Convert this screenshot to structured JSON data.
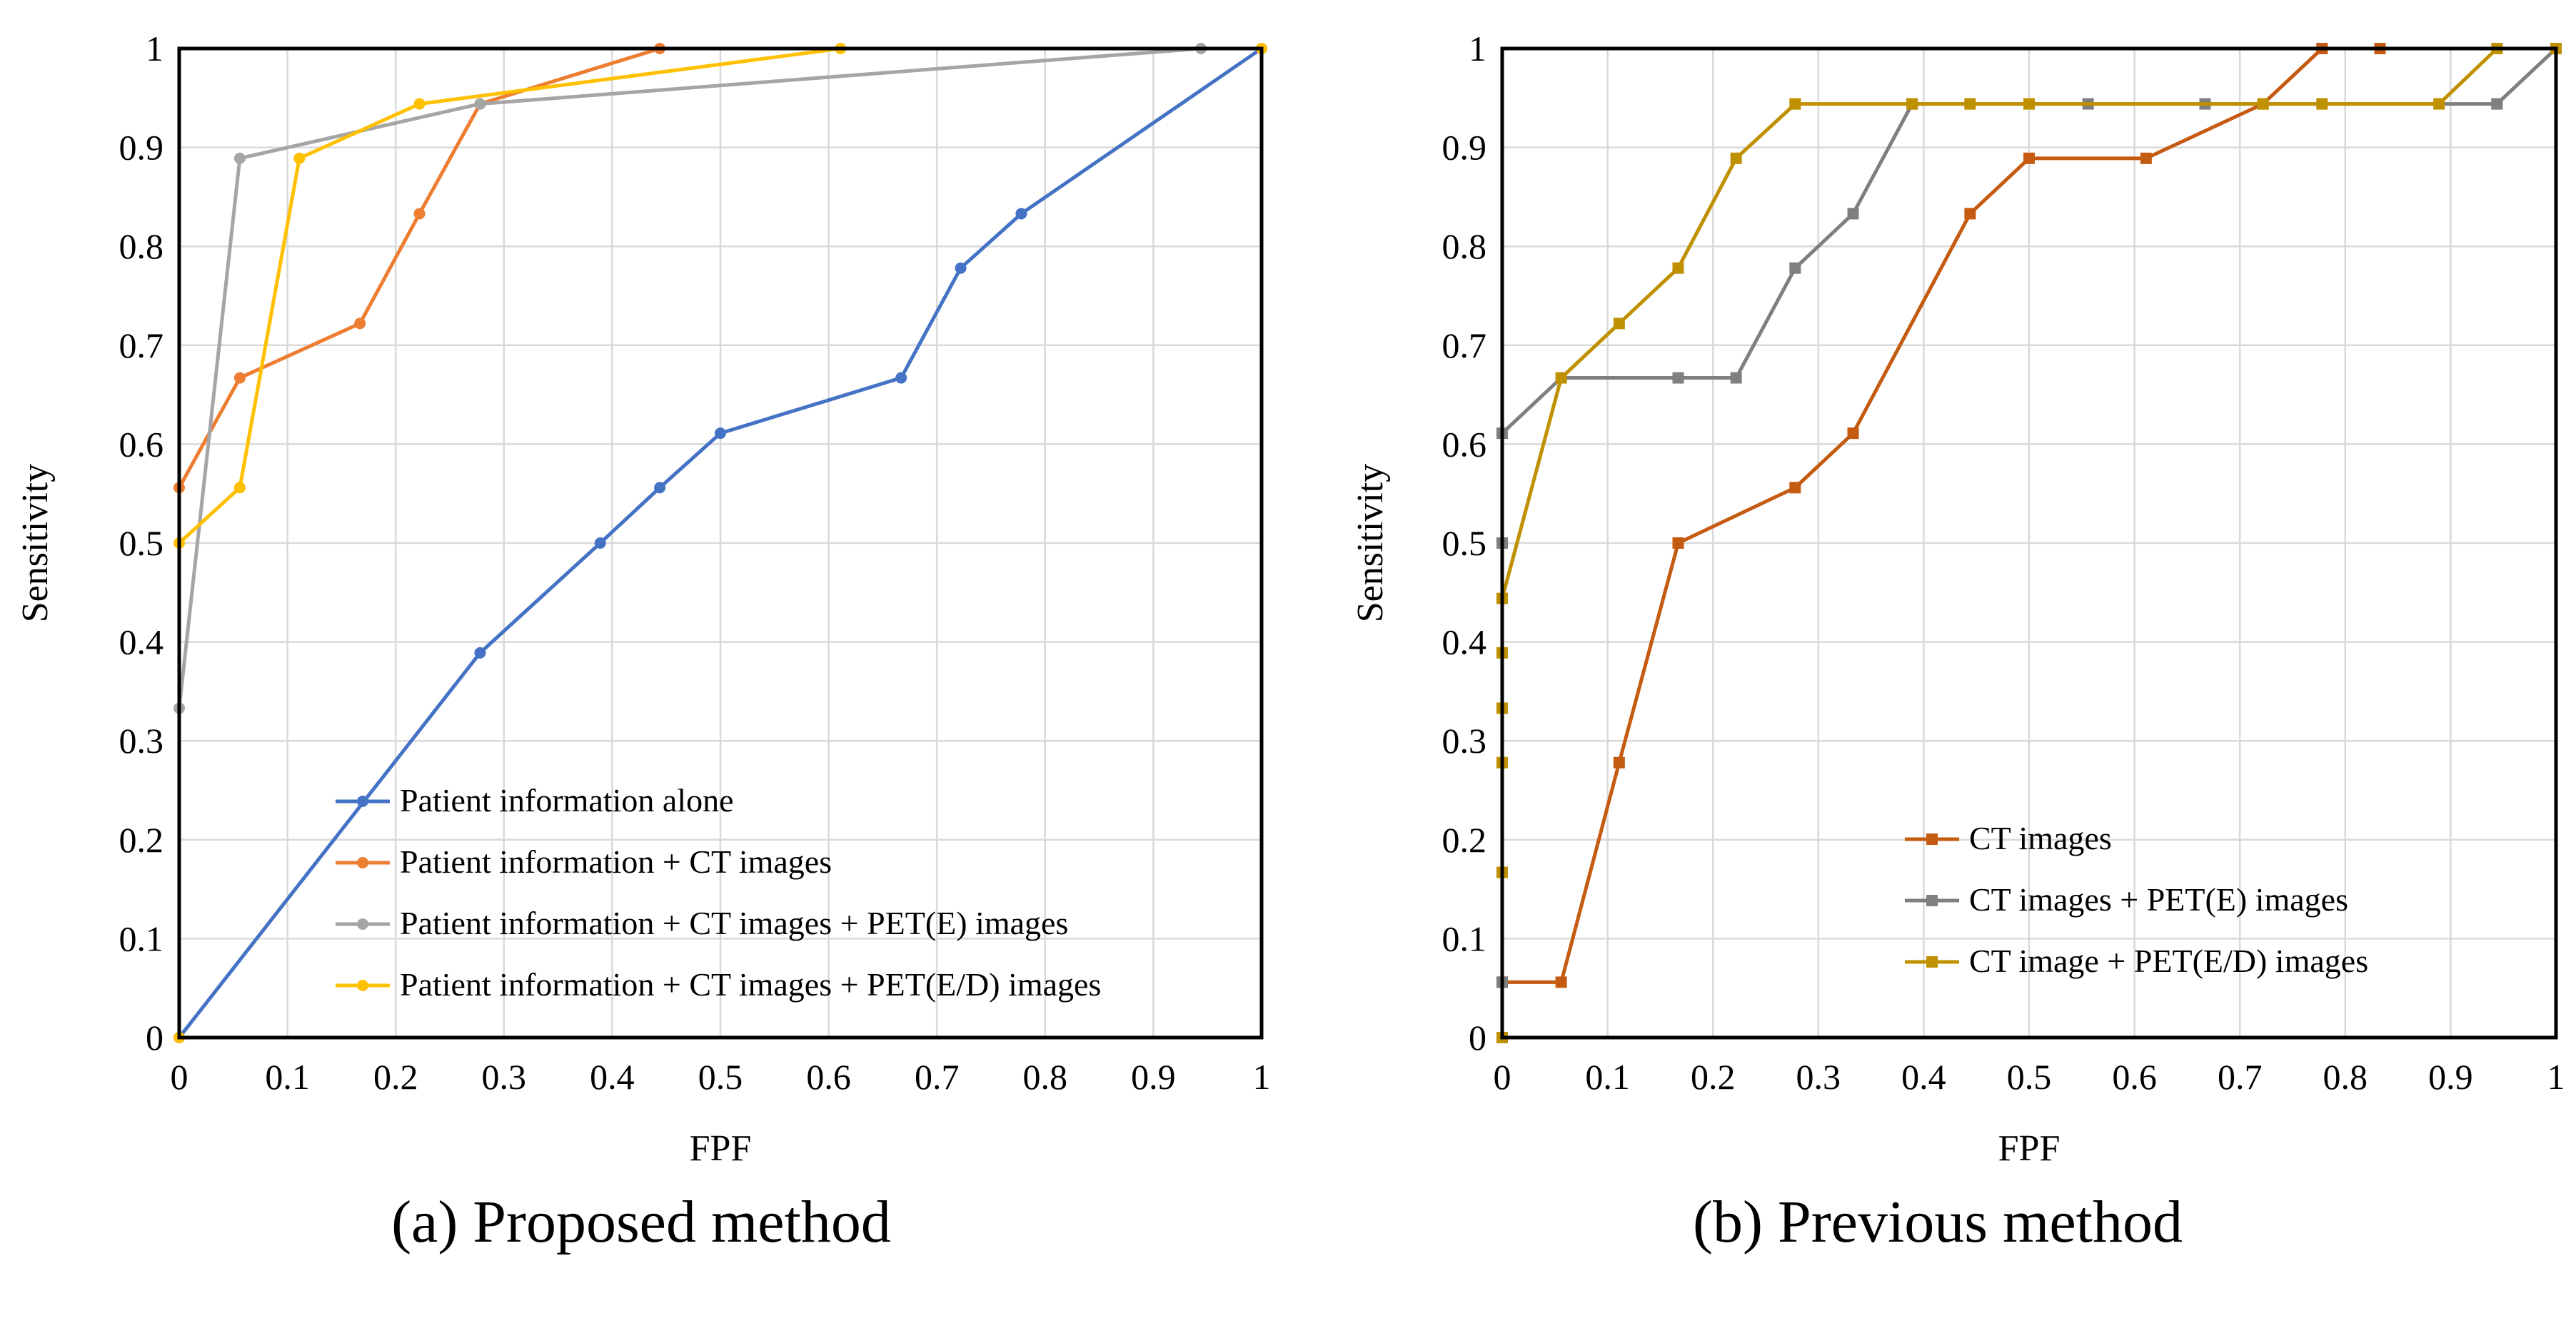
{
  "chart_data": [
    {
      "type": "line",
      "caption": "(a) Proposed method",
      "xlabel": "FPF",
      "ylabel": "Sensitivity",
      "xlim": [
        0,
        1
      ],
      "ylim": [
        0,
        1
      ],
      "grid": true,
      "x_ticks": [
        "0",
        "0.1",
        "0.2",
        "0.3",
        "0.4",
        "0.5",
        "0.6",
        "0.7",
        "0.8",
        "0.9",
        "1"
      ],
      "y_ticks": [
        "0",
        "0.1",
        "0.2",
        "0.3",
        "0.4",
        "0.5",
        "0.6",
        "0.7",
        "0.8",
        "0.9",
        "1"
      ],
      "legend_position": "bottom-center",
      "marker": "circle",
      "series": [
        {
          "name": "Patient information alone",
          "color": "#4472C4",
          "x": [
            0,
            0.278,
            0.389,
            0.444,
            0.5,
            0.667,
            0.722,
            0.778,
            1
          ],
          "y": [
            0,
            0.389,
            0.5,
            0.556,
            0.611,
            0.667,
            0.778,
            0.833,
            1
          ]
        },
        {
          "name": "Patient information + CT images",
          "color": "#ED7D31",
          "x": [
            0,
            0.056,
            0.167,
            0.222,
            0.278,
            0.444,
            1
          ],
          "y": [
            0.556,
            0.667,
            0.722,
            0.833,
            0.944,
            1,
            1
          ]
        },
        {
          "name": "Patient information + CT images + PET(E) images",
          "color": "#A5A5A5",
          "x": [
            0,
            0.056,
            0.278,
            0.944,
            1
          ],
          "y": [
            0.333,
            0.889,
            0.944,
            1,
            1
          ]
        },
        {
          "name": "Patient information + CT images + PET(E/D) images",
          "color": "#FFC000",
          "x": [
            0,
            0,
            0.056,
            0.111,
            0.222,
            0.611,
            1
          ],
          "y": [
            0,
            0.5,
            0.556,
            0.889,
            0.944,
            1,
            1
          ]
        }
      ]
    },
    {
      "type": "line",
      "caption": "(b) Previous method",
      "xlabel": "FPF",
      "ylabel": "Sensitivity",
      "xlim": [
        0,
        1
      ],
      "ylim": [
        0,
        1
      ],
      "grid": true,
      "x_ticks": [
        "0",
        "0.1",
        "0.2",
        "0.3",
        "0.4",
        "0.5",
        "0.6",
        "0.7",
        "0.8",
        "0.9",
        "1"
      ],
      "y_ticks": [
        "0",
        "0.1",
        "0.2",
        "0.3",
        "0.4",
        "0.5",
        "0.6",
        "0.7",
        "0.8",
        "0.9",
        "1"
      ],
      "legend_position": "bottom-right",
      "marker": "square",
      "series": [
        {
          "name": "CT images",
          "color": "#C55A11",
          "x": [
            0,
            0.056,
            0.111,
            0.167,
            0.278,
            0.333,
            0.444,
            0.5,
            0.611,
            0.722,
            0.778,
            0.833,
            1
          ],
          "y": [
            0.056,
            0.056,
            0.278,
            0.5,
            0.556,
            0.611,
            0.833,
            0.889,
            0.889,
            0.944,
            1,
            1,
            1
          ]
        },
        {
          "name": "CT images + PET(E) images",
          "color": "#7F7F7F",
          "x": [
            0,
            0,
            0,
            0.056,
            0.167,
            0.222,
            0.278,
            0.333,
            0.389,
            0.556,
            0.667,
            0.944,
            1
          ],
          "y": [
            0.056,
            0.5,
            0.611,
            0.667,
            0.667,
            0.667,
            0.778,
            0.833,
            0.944,
            0.944,
            0.944,
            0.944,
            1
          ]
        },
        {
          "name": "CT image + PET(E/D) images",
          "color": "#BF9000",
          "x": [
            0,
            0,
            0,
            0,
            0,
            0,
            0.056,
            0.111,
            0.167,
            0.222,
            0.278,
            0.389,
            0.444,
            0.5,
            0.722,
            0.778,
            0.889,
            0.944,
            1
          ],
          "y": [
            0,
            0.167,
            0.278,
            0.333,
            0.389,
            0.444,
            0.667,
            0.722,
            0.778,
            0.889,
            0.944,
            0.944,
            0.944,
            0.944,
            0.944,
            0.944,
            0.944,
            1,
            1
          ]
        }
      ]
    }
  ]
}
